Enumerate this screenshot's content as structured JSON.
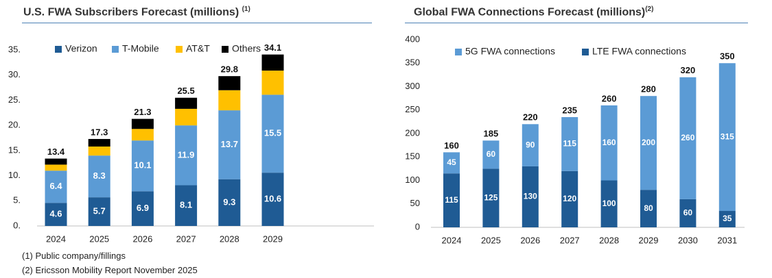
{
  "chart_data": [
    {
      "type": "bar",
      "stacked": true,
      "title": "U.S. FWA Subscribers Forecast (millions)",
      "title_note": "(1)",
      "categories": [
        "2024",
        "2025",
        "2026",
        "2027",
        "2028",
        "2029"
      ],
      "series": [
        {
          "name": "Verizon",
          "color": "#1f5b94",
          "values": [
            4.6,
            5.7,
            6.9,
            8.1,
            9.3,
            10.6
          ],
          "labels": [
            "4.6",
            "5.7",
            "6.9",
            "8.1",
            "9.3",
            "10.6"
          ]
        },
        {
          "name": "T-Mobile",
          "color": "#5b9bd5",
          "values": [
            6.4,
            8.3,
            10.1,
            11.9,
            13.7,
            15.5
          ],
          "labels": [
            "6.4",
            "8.3",
            "10.1",
            "11.9",
            "13.7",
            "15.5"
          ]
        },
        {
          "name": "AT&T",
          "color": "#ffc000",
          "values": [
            1.2,
            1.8,
            2.3,
            3.3,
            4.0,
            4.8
          ]
        },
        {
          "name": "Others",
          "color": "#000000",
          "values": [
            1.2,
            1.5,
            2.0,
            2.2,
            2.8,
            3.2
          ]
        }
      ],
      "totals": [
        "13.4",
        "17.3",
        "21.3",
        "25.5",
        "29.8",
        "34.1"
      ],
      "ylim": [
        0,
        35
      ],
      "yticks": [
        "0.",
        "5.",
        "10.",
        "15.",
        "20.",
        "25.",
        "30.",
        "35."
      ],
      "grid": false,
      "legend": "top"
    },
    {
      "type": "bar",
      "stacked": true,
      "title": "Global FWA Connections Forecast (millions)",
      "title_note": "(2)",
      "categories": [
        "2024",
        "2025",
        "2026",
        "2027",
        "2028",
        "2029",
        "2030",
        "2031"
      ],
      "series": [
        {
          "name": "LTE  FWA connections",
          "color": "#1f5b94",
          "values": [
            115,
            125,
            130,
            120,
            100,
            80,
            60,
            35
          ],
          "labels": [
            "115",
            "125",
            "130",
            "120",
            "100",
            "80",
            "60",
            "35"
          ]
        },
        {
          "name": "5G  FWA connections",
          "color": "#5b9bd5",
          "values": [
            45,
            60,
            90,
            115,
            160,
            200,
            260,
            315
          ],
          "labels": [
            "45",
            "60",
            "90",
            "115",
            "160",
            "200",
            "260",
            "315"
          ]
        }
      ],
      "totals": [
        "160",
        "185",
        "220",
        "235",
        "260",
        "280",
        "320",
        "350"
      ],
      "ylim": [
        0,
        400
      ],
      "yticks": [
        "0",
        "50",
        "100",
        "150",
        "200",
        "250",
        "300",
        "350",
        "400"
      ],
      "grid": false,
      "legend": "top"
    }
  ],
  "footnotes": [
    "(1) Public company/fillings",
    "(2) Ericsson Mobility Report November 2025"
  ]
}
